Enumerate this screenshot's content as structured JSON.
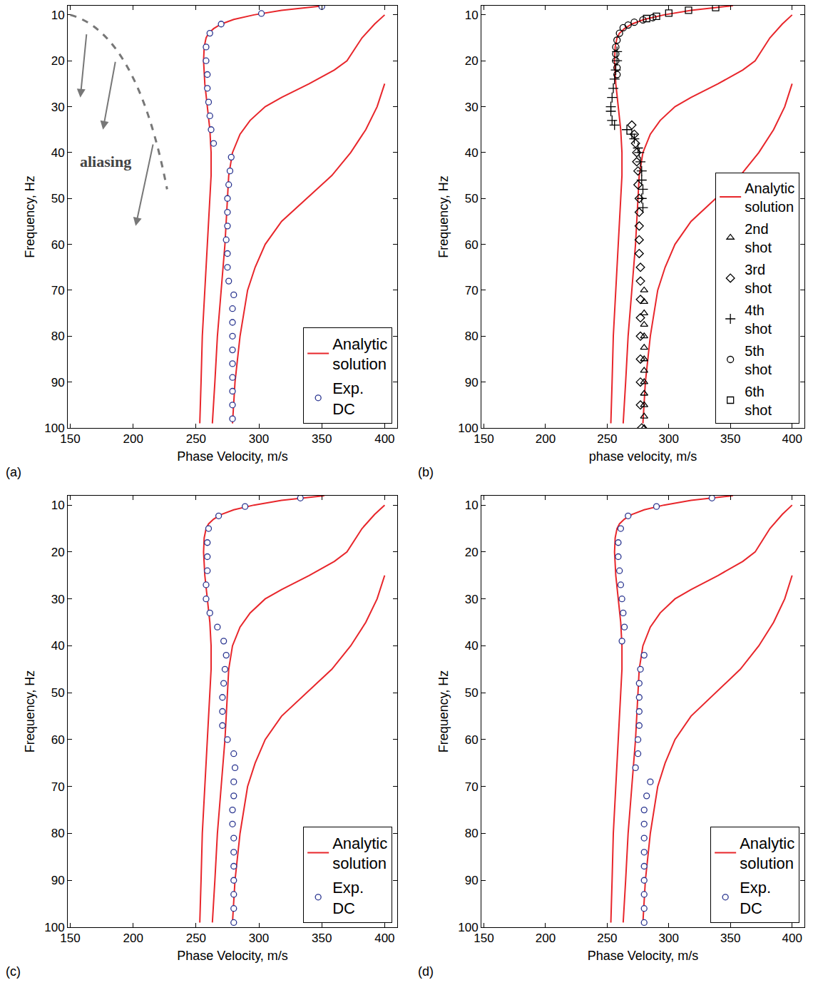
{
  "chart_data": [
    {
      "type": "line",
      "label": "(a)",
      "xlabel": "Phase Velocity, m/s",
      "ylabel": "Frequency, Hz",
      "xlim": [
        148,
        410
      ],
      "ylim": [
        100,
        8
      ],
      "xticks": [
        150,
        200,
        250,
        300,
        350,
        400
      ],
      "yticks": [
        10,
        20,
        30,
        40,
        50,
        60,
        70,
        80,
        90,
        100
      ],
      "grid": false,
      "legend": "lower right",
      "annotations": [
        {
          "text": "aliasing"
        }
      ],
      "series": [
        {
          "name": "Analytic solution",
          "type": "line",
          "color": "#e8262b",
          "line_style": "solid",
          "x": [
            352,
            318,
            296,
            280,
            270,
            264,
            260,
            258,
            256.5,
            256,
            257,
            259,
            261,
            262,
            262,
            261,
            259,
            257,
            255,
            254,
            253
          ],
          "values": [
            8,
            9,
            10,
            11,
            12,
            13,
            14,
            15,
            17,
            20,
            25,
            30,
            35,
            40,
            45,
            50,
            60,
            70,
            80,
            90,
            99
          ]
        },
        {
          "name": "Analytic solution",
          "type": "line",
          "color": "#e8262b",
          "line_style": "solid",
          "x": [
            400,
            392,
            382,
            375,
            370,
            360,
            340,
            318,
            305,
            293,
            285,
            279,
            276,
            275,
            274,
            273,
            270,
            267,
            265,
            263
          ],
          "values": [
            10,
            12,
            15,
            18,
            20,
            22,
            25,
            28,
            30,
            33,
            36,
            40,
            45,
            50,
            55,
            60,
            70,
            80,
            90,
            99
          ]
        },
        {
          "name": "Analytic solution",
          "type": "line",
          "color": "#e8262b",
          "line_style": "solid",
          "x": [
            400,
            394,
            385,
            373,
            358,
            338,
            318,
            305,
            297,
            291,
            288,
            285,
            281,
            279
          ],
          "values": [
            25,
            30,
            35,
            40,
            45,
            50,
            55,
            60,
            65,
            70,
            75,
            80,
            90,
            99
          ]
        },
        {
          "name": "Exp. DC",
          "type": "scatter",
          "color": "#2a3590",
          "marker": "circle",
          "x": [
            350,
            302,
            270,
            261,
            258,
            258,
            259,
            259,
            260,
            261,
            262,
            264,
            278,
            277,
            276,
            275,
            275,
            275,
            274,
            275,
            275,
            276,
            280,
            279,
            279,
            279,
            279,
            279,
            279,
            279,
            279,
            279
          ],
          "values": [
            8.2,
            9.7,
            12,
            14,
            17,
            20,
            23,
            26,
            29,
            32,
            35,
            38,
            41,
            44,
            47,
            50,
            53,
            56,
            59,
            62,
            65,
            68,
            71,
            74,
            77,
            80,
            83,
            86,
            89,
            92,
            95,
            98
          ]
        }
      ]
    },
    {
      "type": "line",
      "label": "(b)",
      "xlabel": "phase velocity, m/s",
      "ylabel": "Frequency, Hz",
      "xlim": [
        148,
        410
      ],
      "ylim": [
        100,
        8
      ],
      "xticks": [
        150,
        200,
        250,
        300,
        350,
        400
      ],
      "yticks": [
        10,
        20,
        30,
        40,
        50,
        60,
        70,
        80,
        90,
        100
      ],
      "grid": false,
      "legend": "lower right",
      "series": [
        {
          "name": "Analytic solution",
          "type": "line",
          "color": "#e8262b",
          "line_style": "solid",
          "x": [
            352,
            318,
            296,
            280,
            270,
            264,
            260,
            258,
            256.5,
            256,
            257,
            259,
            261,
            262,
            262,
            261,
            259,
            257,
            255,
            254,
            253
          ],
          "values": [
            8,
            9,
            10,
            11,
            12,
            13,
            14,
            15,
            17,
            20,
            25,
            30,
            35,
            40,
            45,
            50,
            60,
            70,
            80,
            90,
            99
          ]
        },
        {
          "name": "Analytic solution",
          "type": "line",
          "color": "#e8262b",
          "line_style": "solid",
          "x": [
            400,
            392,
            382,
            375,
            370,
            360,
            340,
            318,
            305,
            293,
            285,
            279,
            276,
            275,
            274,
            273,
            270,
            267,
            265,
            263
          ],
          "values": [
            10,
            12,
            15,
            18,
            20,
            22,
            25,
            28,
            30,
            33,
            36,
            40,
            45,
            50,
            55,
            60,
            70,
            80,
            90,
            99
          ]
        },
        {
          "name": "Analytic solution",
          "type": "line",
          "color": "#e8262b",
          "line_style": "solid",
          "x": [
            400,
            394,
            385,
            373,
            358,
            338,
            318,
            305,
            297,
            291,
            288,
            285,
            281,
            279
          ],
          "values": [
            25,
            30,
            35,
            40,
            45,
            50,
            55,
            60,
            65,
            70,
            75,
            80,
            90,
            99
          ]
        },
        {
          "name": "2nd shot",
          "type": "scatter",
          "color": "#000000",
          "marker": "triangle",
          "x": [
            280,
            280,
            280,
            280,
            280,
            280,
            280,
            280,
            280,
            280,
            280,
            280,
            280
          ],
          "values": [
            70,
            72.5,
            75,
            77.5,
            80,
            82.5,
            85,
            87.5,
            90,
            92.5,
            95,
            97.5,
            100
          ]
        },
        {
          "name": "3rd shot",
          "type": "scatter",
          "color": "#000000",
          "marker": "diamond",
          "x": [
            270,
            272,
            273,
            274,
            274,
            275,
            275,
            276,
            276,
            276,
            276,
            276,
            277,
            277,
            277,
            277,
            277,
            277,
            277,
            277,
            278
          ],
          "values": [
            34,
            36,
            38,
            40,
            42,
            44,
            47,
            50,
            53,
            56,
            59,
            62,
            65,
            68,
            72,
            76,
            80,
            85,
            90,
            95,
            100
          ]
        },
        {
          "name": "4th shot",
          "type": "scatter",
          "color": "#000000",
          "marker": "plus",
          "x": [
            258,
            258,
            257,
            256,
            255,
            254,
            253,
            253,
            254,
            256,
            266,
            270,
            272,
            275,
            276,
            277,
            278,
            278,
            279,
            278,
            279
          ],
          "values": [
            18,
            20,
            22,
            24,
            26,
            28,
            30,
            31,
            33,
            34,
            35,
            36,
            37,
            39,
            40,
            42,
            44,
            46,
            48,
            50,
            52
          ]
        },
        {
          "name": "5th shot",
          "type": "scatter",
          "color": "#000000",
          "marker": "open_circle",
          "x": [
            287,
            279,
            272,
            267,
            263,
            260,
            258,
            257,
            257,
            257,
            258,
            258
          ],
          "values": [
            10.6,
            11.1,
            11.6,
            12.2,
            12.8,
            14,
            15.5,
            17,
            18.5,
            20,
            21.5,
            23
          ]
        },
        {
          "name": "6th shot",
          "type": "scatter",
          "color": "#000000",
          "marker": "square",
          "x": [
            338,
            316,
            300,
            290,
            282
          ],
          "values": [
            8.4,
            9.0,
            9.6,
            10.3,
            10.8
          ]
        }
      ]
    },
    {
      "type": "line",
      "label": "(c)",
      "xlabel": "Phase Velocity, m/s",
      "ylabel": "Frequency, Hz",
      "xlim": [
        148,
        410
      ],
      "ylim": [
        100,
        8
      ],
      "xticks": [
        150,
        200,
        250,
        300,
        350,
        400
      ],
      "yticks": [
        10,
        20,
        30,
        40,
        50,
        60,
        70,
        80,
        90,
        100
      ],
      "grid": false,
      "legend": "lower right",
      "series": [
        {
          "name": "Analytic solution",
          "type": "line",
          "color": "#e8262b",
          "line_style": "solid",
          "x": [
            352,
            318,
            296,
            280,
            270,
            264,
            260,
            258,
            256.5,
            256,
            257,
            259,
            261,
            262,
            262,
            261,
            259,
            257,
            255,
            254,
            253
          ],
          "values": [
            8,
            9,
            10,
            11,
            12,
            13,
            14,
            15,
            17,
            20,
            25,
            30,
            35,
            40,
            45,
            50,
            60,
            70,
            80,
            90,
            99
          ]
        },
        {
          "name": "Analytic solution",
          "type": "line",
          "color": "#e8262b",
          "line_style": "solid",
          "x": [
            400,
            392,
            382,
            375,
            370,
            360,
            340,
            318,
            305,
            293,
            285,
            279,
            276,
            275,
            274,
            273,
            270,
            267,
            265,
            263
          ],
          "values": [
            10,
            12,
            15,
            18,
            20,
            22,
            25,
            28,
            30,
            33,
            36,
            40,
            45,
            50,
            55,
            60,
            70,
            80,
            90,
            99
          ]
        },
        {
          "name": "Analytic solution",
          "type": "line",
          "color": "#e8262b",
          "line_style": "solid",
          "x": [
            400,
            394,
            385,
            373,
            358,
            338,
            318,
            305,
            297,
            291,
            288,
            285,
            281,
            279
          ],
          "values": [
            25,
            30,
            35,
            40,
            45,
            50,
            55,
            60,
            65,
            70,
            75,
            80,
            90,
            99
          ]
        },
        {
          "name": "Exp. DC",
          "type": "scatter",
          "color": "#2a3590",
          "marker": "circle",
          "x": [
            333,
            289,
            268,
            260,
            259,
            259,
            259,
            258,
            258,
            261,
            267,
            272,
            274,
            273,
            272,
            271,
            271,
            271,
            275,
            280,
            281,
            280,
            280,
            279,
            279,
            280,
            280,
            280,
            280,
            280,
            280,
            280
          ],
          "values": [
            8.5,
            10.3,
            12.3,
            15,
            18,
            21,
            24,
            27,
            30,
            33,
            36,
            39,
            42,
            45,
            48,
            51,
            54,
            57,
            60,
            63,
            66,
            69,
            72,
            75,
            78,
            81,
            84,
            87,
            90,
            93,
            96,
            99
          ]
        }
      ]
    },
    {
      "type": "line",
      "label": "(d)",
      "xlabel": "Phase Velocity, m/s",
      "ylabel": "Frequency, Hz",
      "xlim": [
        148,
        410
      ],
      "ylim": [
        100,
        8
      ],
      "xticks": [
        150,
        200,
        250,
        300,
        350,
        400
      ],
      "yticks": [
        10,
        20,
        30,
        40,
        50,
        60,
        70,
        80,
        90,
        100
      ],
      "grid": false,
      "legend": "lower right",
      "series": [
        {
          "name": "Analytic solution",
          "type": "line",
          "color": "#e8262b",
          "line_style": "solid",
          "x": [
            352,
            318,
            296,
            280,
            270,
            264,
            260,
            258,
            256.5,
            256,
            257,
            259,
            261,
            262,
            262,
            261,
            259,
            257,
            255,
            254,
            253
          ],
          "values": [
            8,
            9,
            10,
            11,
            12,
            13,
            14,
            15,
            17,
            20,
            25,
            30,
            35,
            40,
            45,
            50,
            60,
            70,
            80,
            90,
            99
          ]
        },
        {
          "name": "Analytic solution",
          "type": "line",
          "color": "#e8262b",
          "line_style": "solid",
          "x": [
            400,
            392,
            382,
            375,
            370,
            360,
            340,
            318,
            305,
            293,
            285,
            279,
            276,
            275,
            274,
            273,
            270,
            267,
            265,
            263
          ],
          "values": [
            10,
            12,
            15,
            18,
            20,
            22,
            25,
            28,
            30,
            33,
            36,
            40,
            45,
            50,
            55,
            60,
            70,
            80,
            90,
            99
          ]
        },
        {
          "name": "Analytic solution",
          "type": "line",
          "color": "#e8262b",
          "line_style": "solid",
          "x": [
            400,
            394,
            385,
            373,
            358,
            338,
            318,
            305,
            297,
            291,
            288,
            285,
            281,
            279
          ],
          "values": [
            25,
            30,
            35,
            40,
            45,
            50,
            55,
            60,
            65,
            70,
            75,
            80,
            90,
            99
          ]
        },
        {
          "name": "Exp. DC",
          "type": "scatter",
          "color": "#2a3590",
          "marker": "circle",
          "x": [
            335,
            290,
            267,
            261,
            259,
            259,
            260,
            261,
            262,
            263,
            264,
            262,
            280,
            277,
            276,
            276,
            276,
            276,
            275,
            275,
            273,
            285,
            282,
            280,
            280,
            280,
            280,
            280,
            280,
            280,
            280,
            280
          ],
          "values": [
            8.5,
            10.3,
            12.3,
            15,
            18,
            21,
            24,
            27,
            30,
            33,
            36,
            39,
            42,
            45,
            48,
            51,
            54,
            57,
            60,
            63,
            66,
            69,
            72,
            75,
            78,
            81,
            84,
            87,
            90,
            93,
            96,
            99
          ]
        }
      ]
    }
  ]
}
